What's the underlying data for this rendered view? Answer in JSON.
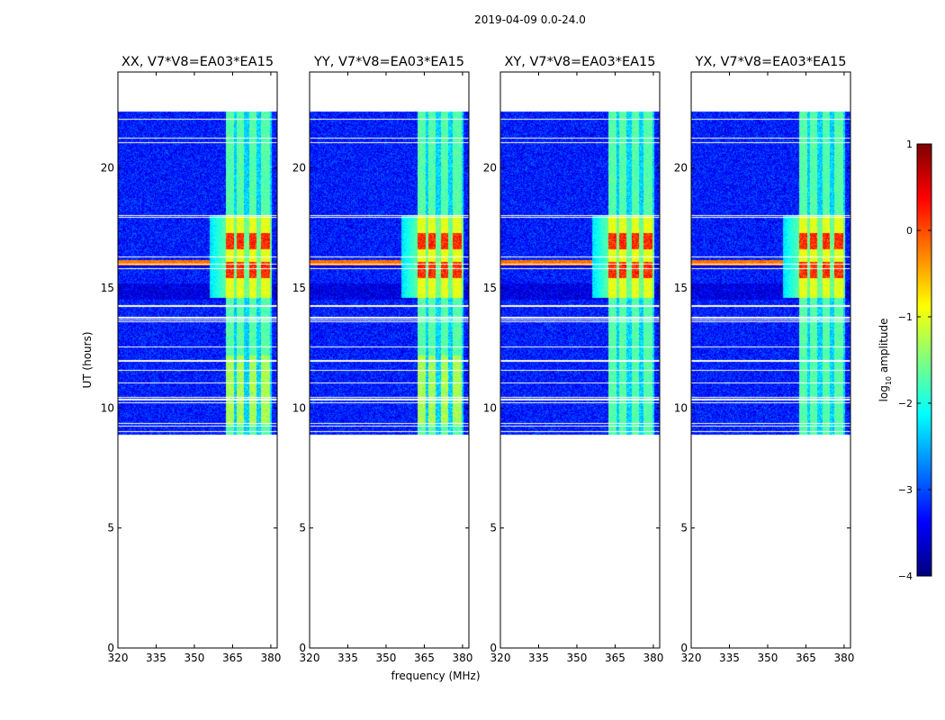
{
  "chart_data": {
    "type": "heatmap",
    "title": "2019-04-09 0.0-24.0",
    "xlabel": "frequency (MHz)",
    "ylabel": "UT (hours)",
    "xlim": [
      320,
      382.5
    ],
    "ylim": [
      0,
      24
    ],
    "xticks": [
      320,
      335,
      350,
      365,
      380
    ],
    "yticks": [
      0,
      5,
      10,
      15,
      20
    ],
    "colorbar": {
      "label_prefix": "log",
      "label_subscript": "10",
      "label_suffix": " amplitude",
      "range": [
        -4,
        1
      ],
      "ticks": [
        1,
        0,
        -1,
        -2,
        -3,
        -4
      ],
      "tick_labels": [
        "1",
        "0",
        "−1",
        "−2",
        "−3",
        "−4"
      ],
      "colormap": "jet",
      "colors": [
        "#00007f",
        "#0000ff",
        "#007fff",
        "#00ffff",
        "#7fff7f",
        "#ffff00",
        "#ff7f00",
        "#ff0000",
        "#7f0000"
      ]
    },
    "data_time_range_hours": [
      8.9,
      24.0
    ],
    "gap_hours": [
      22.4,
      23.95
    ],
    "rfi_band_mhz": [
      362.3,
      380.5
    ],
    "rfi_channels_mhz": [
      [
        362.5,
        365.5
      ],
      [
        366.5,
        369.5
      ],
      [
        371.5,
        374.5
      ],
      [
        376.0,
        379.5
      ]
    ],
    "peak_time_hours": [
      15.5,
      16.2
    ],
    "panels": [
      {
        "title": "XX, V7*V8=EA03*EA15",
        "pol": "XX"
      },
      {
        "title": "YY, V7*V8=EA03*EA15",
        "pol": "YY"
      },
      {
        "title": "XY, V7*V8=EA03*EA15",
        "pol": "XY"
      },
      {
        "title": "YX, V7*V8=EA03*EA15",
        "pol": "YX"
      }
    ]
  }
}
